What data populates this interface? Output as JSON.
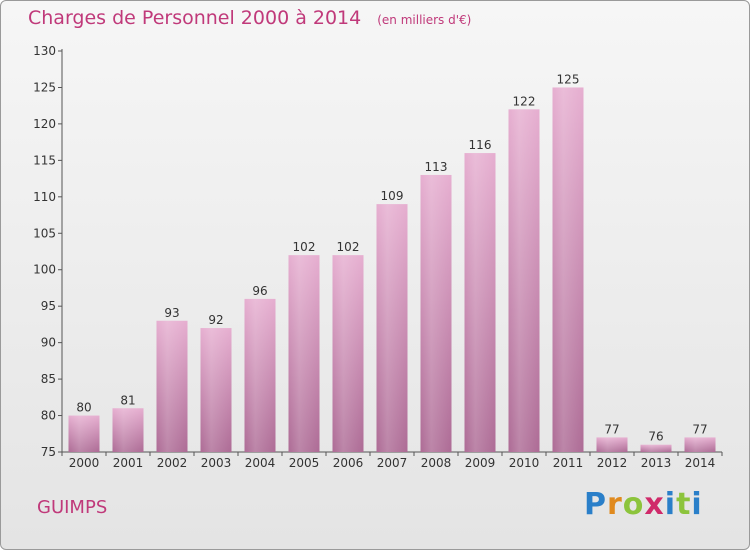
{
  "header": {
    "title": "Charges de Personnel 2000 à 2014",
    "subtitle": "(en milliers d'€)"
  },
  "footer": {
    "commune": "GUIMPS",
    "logo_text": "Proxiti"
  },
  "colors": {
    "bar_top": "#e6aed0",
    "bar_bottom": "#ad6b95",
    "title": "#c0397a",
    "axis": "#555555"
  },
  "chart_data": {
    "type": "bar",
    "title": "Charges de Personnel 2000 à 2014",
    "subtitle": "(en milliers d'€)",
    "categories": [
      "2000",
      "2001",
      "2002",
      "2003",
      "2004",
      "2005",
      "2006",
      "2007",
      "2008",
      "2009",
      "2010",
      "2011",
      "2012",
      "2013",
      "2014"
    ],
    "values": [
      80,
      81,
      93,
      92,
      96,
      102,
      102,
      109,
      113,
      116,
      122,
      125,
      77,
      76,
      77
    ],
    "ylim": [
      75,
      130
    ],
    "yticks": [
      75,
      80,
      85,
      90,
      95,
      100,
      105,
      110,
      115,
      120,
      125,
      130
    ],
    "grid": false,
    "legend": "none",
    "data_labels": true
  }
}
